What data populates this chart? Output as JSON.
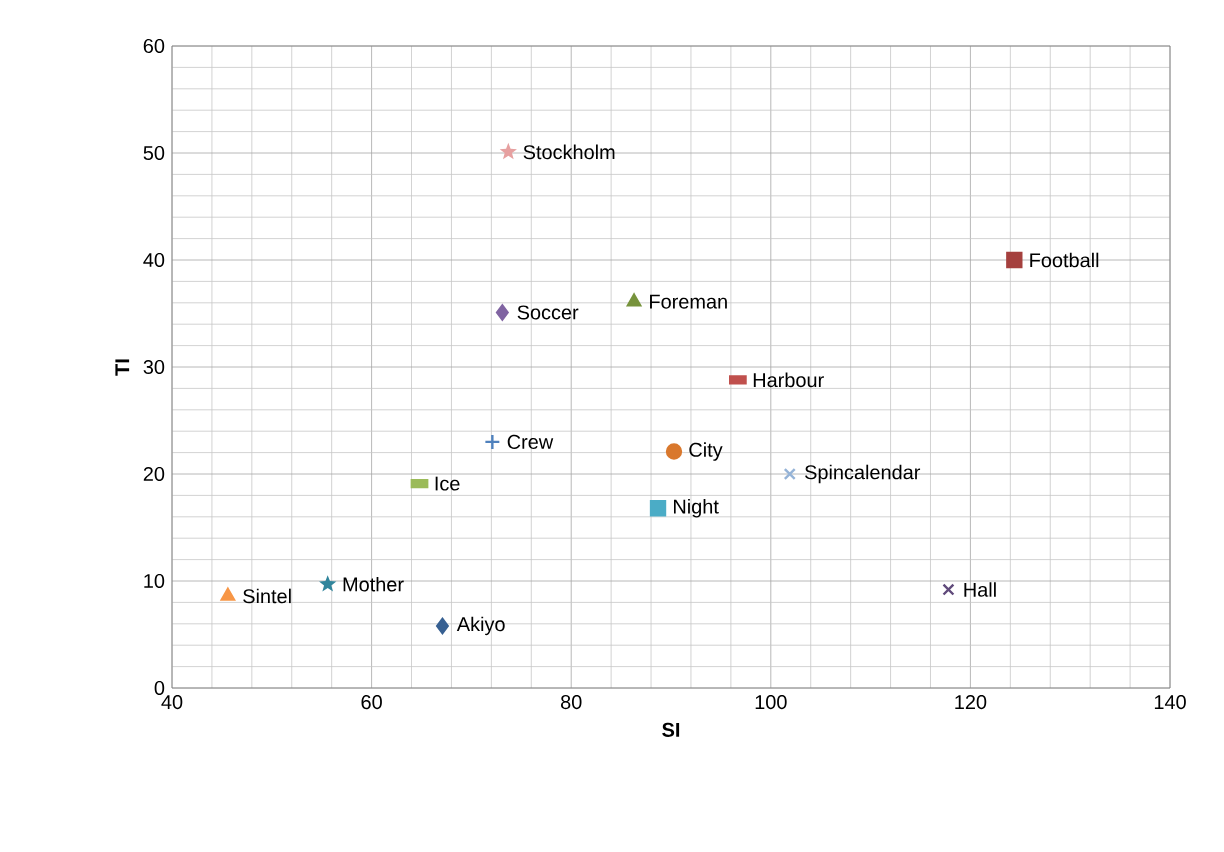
{
  "chart_data": {
    "type": "scatter",
    "xlabel": "SI",
    "ylabel": "TI",
    "xlim": [
      40,
      140
    ],
    "ylim": [
      0,
      60
    ],
    "xticks": [
      40,
      60,
      80,
      100,
      120,
      140
    ],
    "yticks": [
      0,
      10,
      20,
      30,
      40,
      50,
      60
    ],
    "grid": true,
    "series": [
      {
        "name": "Stockholm",
        "color": "#e6a0a0",
        "marker": "star",
        "x": [
          73.7
        ],
        "values": [
          50.1
        ]
      },
      {
        "name": "Football",
        "color": "#a5403e",
        "marker": "square",
        "x": [
          124.4
        ],
        "values": [
          40.0
        ]
      },
      {
        "name": "Soccer",
        "color": "#8064a2",
        "marker": "diamond",
        "x": [
          73.1
        ],
        "values": [
          35.1
        ]
      },
      {
        "name": "Foreman",
        "color": "#77933c",
        "marker": "triangle",
        "x": [
          86.3
        ],
        "values": [
          36.1
        ]
      },
      {
        "name": "Harbour",
        "color": "#c0504d",
        "x": [
          96.7
        ],
        "values": [
          28.8
        ]
      },
      {
        "name": "Crew",
        "color": "#4f81bd",
        "marker": "plus",
        "x": [
          72.1
        ],
        "values": [
          23.0
        ]
      },
      {
        "name": "City",
        "color": "#d9782d",
        "marker": "circle",
        "x": [
          90.3
        ],
        "values": [
          22.1
        ]
      },
      {
        "name": "Spincalendar",
        "color": "#95b3d7",
        "marker": "cross",
        "x": [
          101.9
        ],
        "values": [
          20.0
        ]
      },
      {
        "name": "Ice",
        "color": "#9bbb59",
        "x": [
          64.8
        ],
        "values": [
          19.1
        ]
      },
      {
        "name": "Night",
        "color": "#4bacc6",
        "marker": "square",
        "x": [
          88.7
        ],
        "values": [
          16.8
        ]
      },
      {
        "name": "Mother",
        "color": "#31859c",
        "marker": "star",
        "x": [
          55.6
        ],
        "values": [
          9.7
        ]
      },
      {
        "name": "Sintel",
        "color": "#f79646",
        "marker": "triangle",
        "x": [
          45.6
        ],
        "values": [
          8.6
        ]
      },
      {
        "name": "Hall",
        "color": "#604a7b",
        "marker": "cross",
        "x": [
          117.8
        ],
        "values": [
          9.2
        ]
      },
      {
        "name": "Akiyo",
        "color": "#376092",
        "marker": "diamond",
        "x": [
          67.1
        ],
        "values": [
          5.8
        ]
      }
    ]
  }
}
